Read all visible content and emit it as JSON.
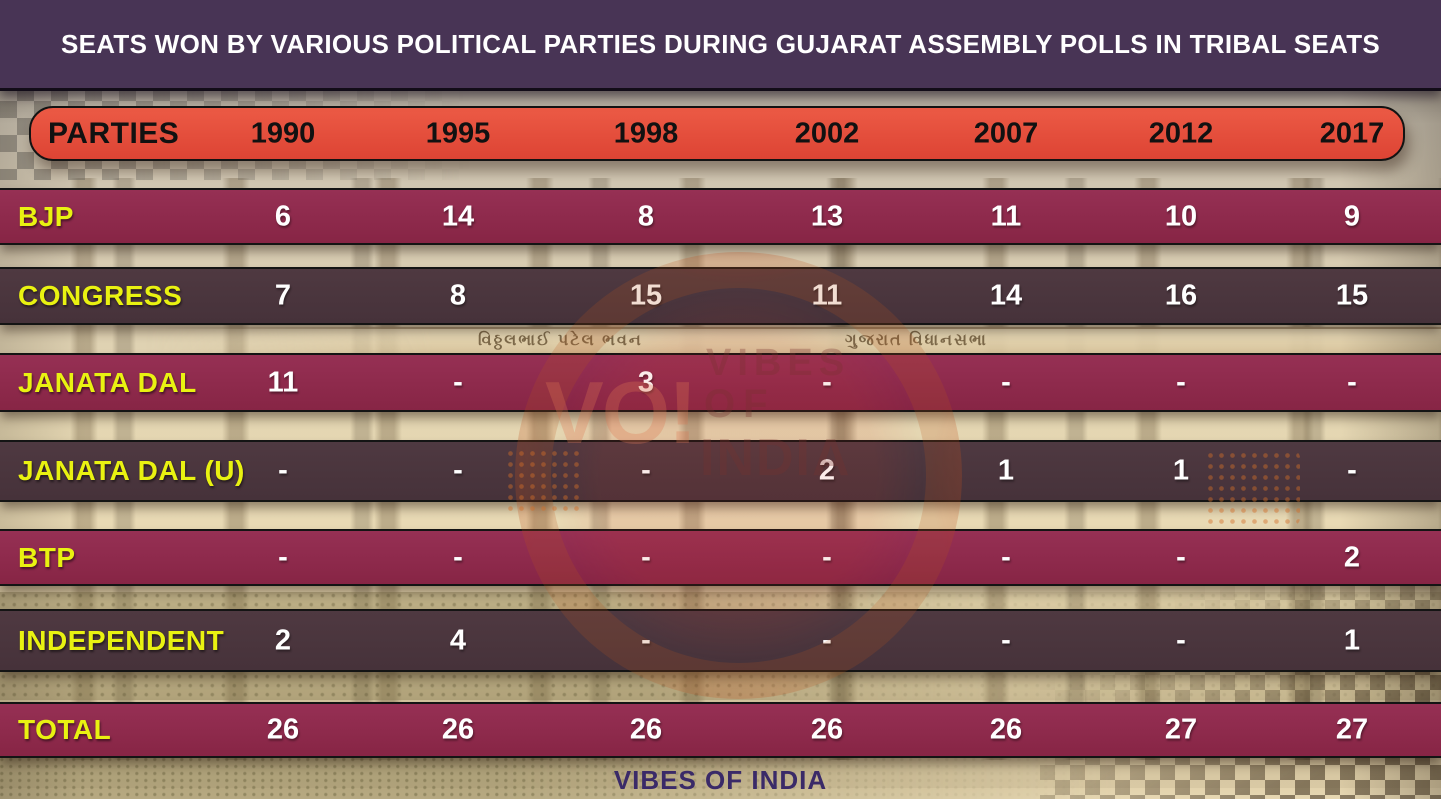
{
  "title": "SEATS WON BY VARIOUS POLITICAL PARTIES DURING GUJARAT ASSEMBLY POLLS IN TRIBAL SEATS",
  "footer_brand": "VIBES OF INDIA",
  "table": {
    "header_label": "PARTIES",
    "years": [
      "1990",
      "1995",
      "1998",
      "2002",
      "2007",
      "2012",
      "2017"
    ],
    "rows": [
      {
        "party": "BJP",
        "values": [
          "6",
          "14",
          "8",
          "13",
          "11",
          "10",
          "9"
        ]
      },
      {
        "party": "CONGRESS",
        "values": [
          "7",
          "8",
          "15",
          "11",
          "14",
          "16",
          "15"
        ]
      },
      {
        "party": "JANATA DAL",
        "values": [
          "11",
          "-",
          "3",
          "-",
          "-",
          "-",
          "-"
        ]
      },
      {
        "party": "JANATA DAL (U)",
        "values": [
          "-",
          "-",
          "-",
          "2",
          "1",
          "1",
          "-"
        ]
      },
      {
        "party": "BTP",
        "values": [
          "-",
          "-",
          "-",
          "-",
          "-",
          "-",
          "2"
        ]
      },
      {
        "party": "INDEPENDENT",
        "values": [
          "2",
          "4",
          "-",
          "-",
          "-",
          "-",
          "1"
        ]
      },
      {
        "party": "TOTAL",
        "values": [
          "26",
          "26",
          "26",
          "26",
          "26",
          "27",
          "27"
        ]
      }
    ]
  },
  "watermark": {
    "logo": "VO!",
    "line1": "VIBES",
    "line2": "OF",
    "line3": "INDIA"
  },
  "background": {
    "photo_text_left": "વિઠ્ઠલભાઈ પટેલ ભવન",
    "photo_text_right": "ગુજરાત વિધાનસભા"
  },
  "colors": {
    "title_bar_bg": "#483455",
    "title_text": "#FFFFFF",
    "header_bg": "#E5503E",
    "header_text": "#111111",
    "row_maroon": "#902B4D",
    "row_dark": "#4B363D",
    "party_label": "#E9F211",
    "value_text": "#FFFFFF",
    "footer_text": "#3A2A68"
  },
  "chart_data": {
    "type": "table",
    "title": "SEATS WON BY VARIOUS POLITICAL PARTIES DURING GUJARAT ASSEMBLY POLLS IN TRIBAL SEATS",
    "categories": [
      "1990",
      "1995",
      "1998",
      "2002",
      "2007",
      "2012",
      "2017"
    ],
    "series": [
      {
        "name": "BJP",
        "values": [
          6,
          14,
          8,
          13,
          11,
          10,
          9
        ]
      },
      {
        "name": "CONGRESS",
        "values": [
          7,
          8,
          15,
          11,
          14,
          16,
          15
        ]
      },
      {
        "name": "JANATA DAL",
        "values": [
          11,
          null,
          3,
          null,
          null,
          null,
          null
        ]
      },
      {
        "name": "JANATA DAL (U)",
        "values": [
          null,
          null,
          null,
          2,
          1,
          1,
          null
        ]
      },
      {
        "name": "BTP",
        "values": [
          null,
          null,
          null,
          null,
          null,
          null,
          2
        ]
      },
      {
        "name": "INDEPENDENT",
        "values": [
          2,
          4,
          null,
          null,
          null,
          null,
          1
        ]
      },
      {
        "name": "TOTAL",
        "values": [
          26,
          26,
          26,
          26,
          26,
          27,
          27
        ]
      }
    ],
    "source": "VIBES OF INDIA"
  }
}
